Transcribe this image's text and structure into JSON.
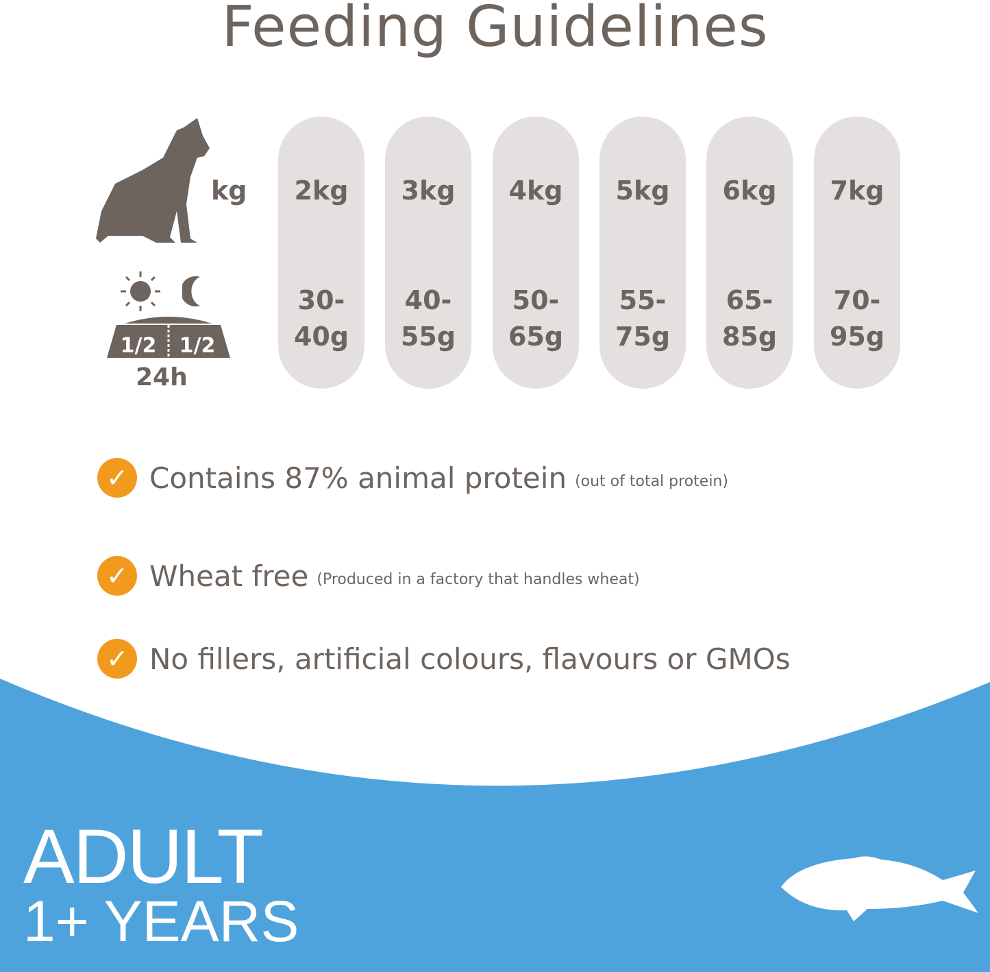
{
  "title": "Feeding Guidelines",
  "weight_unit_label": "kg",
  "period_label": "24h",
  "bowl_split": [
    "1/2",
    "1/2"
  ],
  "columns": [
    {
      "weight": "2kg",
      "amount": [
        "30-",
        "40g"
      ]
    },
    {
      "weight": "3kg",
      "amount": [
        "40-",
        "55g"
      ]
    },
    {
      "weight": "4kg",
      "amount": [
        "50-",
        "65g"
      ]
    },
    {
      "weight": "5kg",
      "amount": [
        "55-",
        "75g"
      ]
    },
    {
      "weight": "6kg",
      "amount": [
        "65-",
        "85g"
      ]
    },
    {
      "weight": "7kg",
      "amount": [
        "70-",
        "95g"
      ]
    }
  ],
  "features": [
    {
      "text": "Contains 87% animal protein",
      "note": "(out of total protein)"
    },
    {
      "text": "Wheat free",
      "note": "(Produced in a factory that handles wheat)"
    },
    {
      "text": "No fillers, artificial colours, flavours or GMOs",
      "note": ""
    }
  ],
  "banner": {
    "line1": "ADULT",
    "line2": "1+ YEARS"
  },
  "colors": {
    "text": "#6e645e",
    "pill": "#e3e0df",
    "check": "#f29a1d",
    "banner": "#4fa3dc"
  },
  "icons": [
    "cat-icon",
    "sun-icon",
    "moon-icon",
    "bowl-icon",
    "check-icon",
    "fish-icon"
  ]
}
